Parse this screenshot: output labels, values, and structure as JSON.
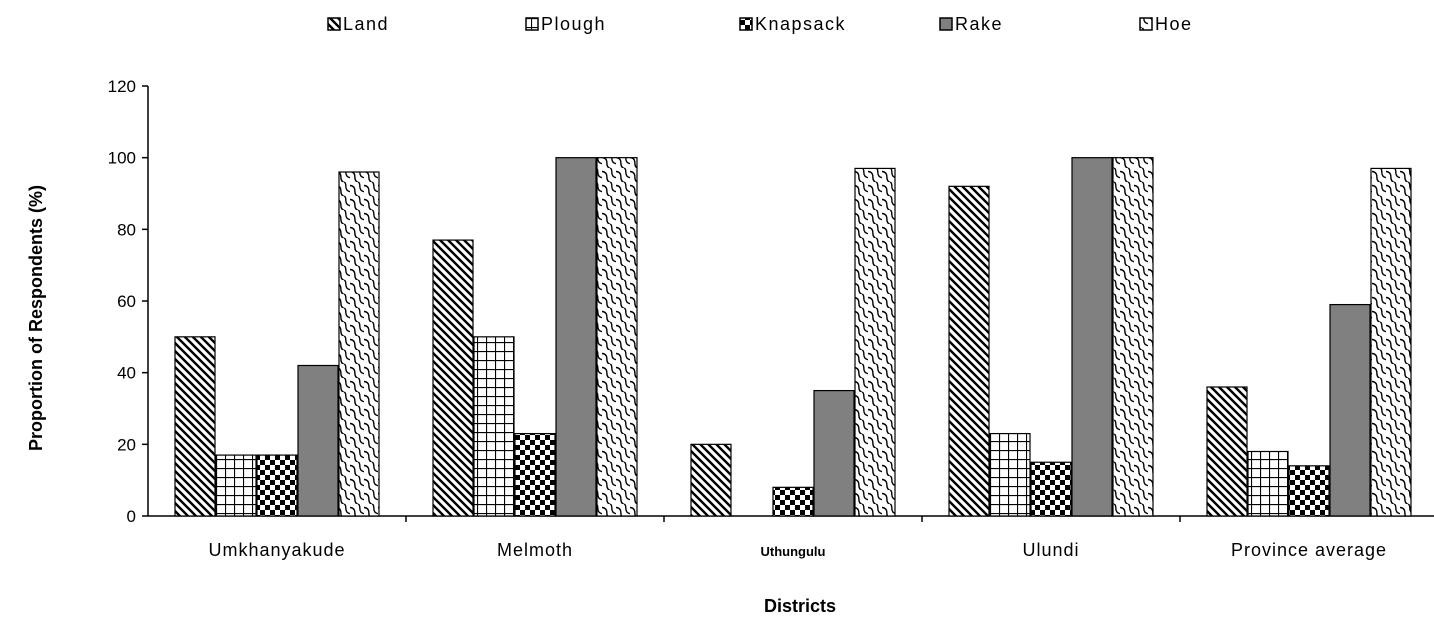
{
  "chart_data": {
    "type": "bar",
    "title": "",
    "xlabel": "Districts",
    "ylabel": "Proportion of Respondents (%)",
    "ylim": [
      0,
      120
    ],
    "yticks": [
      0,
      20,
      40,
      60,
      80,
      100,
      120
    ],
    "grid": false,
    "legend_position": "top",
    "categories": [
      "Umkhanyakude",
      "Melmoth",
      "Uthungulu",
      "Ulundi",
      "Province average"
    ],
    "series": [
      {
        "name": "Land",
        "pattern": "diagonal-hatch",
        "values": [
          50,
          77,
          20,
          92,
          36
        ]
      },
      {
        "name": "Plough",
        "pattern": "grid",
        "values": [
          17,
          50,
          0,
          23,
          18
        ]
      },
      {
        "name": "Knapsack",
        "pattern": "checker",
        "values": [
          17,
          23,
          8,
          15,
          14
        ]
      },
      {
        "name": "Rake",
        "pattern": "solid-gray",
        "values": [
          42,
          100,
          35,
          100,
          59
        ]
      },
      {
        "name": "Hoe",
        "pattern": "wave",
        "values": [
          96,
          100,
          97,
          100,
          97
        ]
      }
    ],
    "colors": {
      "rake": "#808080",
      "axis": "#000000",
      "background": "#ffffff"
    }
  }
}
